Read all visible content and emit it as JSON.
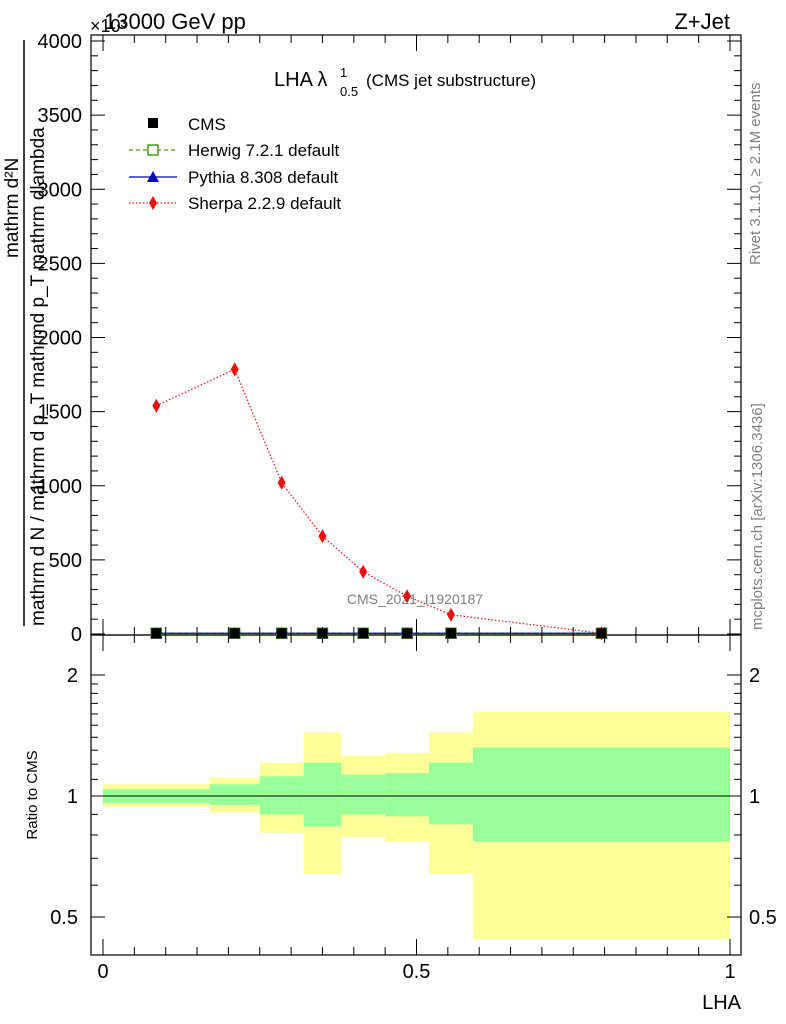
{
  "header": {
    "energy_label": "13000 GeV pp",
    "process_label": "Z+Jet",
    "exponent_label": "×10³"
  },
  "side_text": {
    "rivet": "Rivet 3.1.10, ≥ 2.1M events",
    "mcplots": "mcplots.cern.ch [arXiv:1306.3436]"
  },
  "watermark": "CMS_2021_I1920187",
  "chart_data": [
    {
      "type": "line",
      "title_main": "LHA λ",
      "title_sup": "1",
      "title_sub": "0.5",
      "title_suffix": "(CMS jet substructure)",
      "ylabel_numerator": "mathrm d²N",
      "ylabel_denominator": "mathrm d N / mathrm d p_T mathrmd p_T mathrm dlambda",
      "ylabel_prefix": "1",
      "xlim": [
        0,
        1
      ],
      "ylim": [
        0,
        4000
      ],
      "y_ticks": [
        0,
        500,
        1000,
        1500,
        2000,
        2500,
        3000,
        3500,
        4000
      ],
      "y_tick_labels": [
        "0",
        "500",
        "1000",
        "1500",
        "2000",
        "2500",
        "3000",
        "3500",
        "4000"
      ],
      "grid": false,
      "legend_position": "top-left",
      "bin_edges": [
        0.0,
        0.17,
        0.25,
        0.32,
        0.38,
        0.45,
        0.52,
        0.59,
        1.0
      ],
      "x": [
        0.085,
        0.21,
        0.285,
        0.35,
        0.415,
        0.485,
        0.555,
        0.795
      ],
      "series": [
        {
          "name": "CMS",
          "color": "#000000",
          "marker": "square-filled",
          "line": "none",
          "values": [
            5,
            5,
            5,
            5,
            5,
            5,
            5,
            5
          ]
        },
        {
          "name": "Herwig 7.2.1 default",
          "color": "#4a9a1a",
          "marker": "square-open",
          "line": "dashed",
          "values": [
            5,
            5,
            5,
            5,
            5,
            5,
            5,
            5
          ]
        },
        {
          "name": "Pythia 8.308 default",
          "color": "#0000cc",
          "marker": "triangle",
          "line": "solid",
          "values": [
            5,
            5,
            5,
            5,
            5,
            5,
            5,
            5
          ]
        },
        {
          "name": "Sherpa 2.2.9 default",
          "color": "#e8100f",
          "marker": "diamond",
          "line": "dotted",
          "values": [
            1540,
            1785,
            1020,
            660,
            420,
            255,
            130,
            5
          ]
        }
      ]
    },
    {
      "type": "area",
      "ylabel": "Ratio to CMS",
      "xlabel": "LHA",
      "xlim": [
        0,
        1
      ],
      "ylim": [
        0.4,
        2.3
      ],
      "y_scale": "log",
      "y_ticks": [
        0.5,
        1,
        2
      ],
      "y_tick_labels": [
        "0.5",
        "1",
        "2"
      ],
      "x_ticks": [
        0,
        0.5,
        1
      ],
      "x_tick_labels": [
        "0",
        "0.5",
        "1"
      ],
      "bin_edges": [
        0.0,
        0.17,
        0.25,
        0.32,
        0.38,
        0.45,
        0.52,
        0.59,
        1.0
      ],
      "band_outer": {
        "color": "#ffff99",
        "low": [
          0.94,
          0.91,
          0.81,
          0.64,
          0.79,
          0.77,
          0.64,
          0.44
        ],
        "high": [
          1.07,
          1.11,
          1.21,
          1.44,
          1.26,
          1.28,
          1.44,
          1.62
        ]
      },
      "band_inner": {
        "color": "#99ff99",
        "low": [
          0.96,
          0.95,
          0.9,
          0.84,
          0.9,
          0.89,
          0.85,
          0.77
        ],
        "high": [
          1.04,
          1.07,
          1.12,
          1.21,
          1.13,
          1.14,
          1.21,
          1.32
        ]
      },
      "reference": 1
    }
  ]
}
